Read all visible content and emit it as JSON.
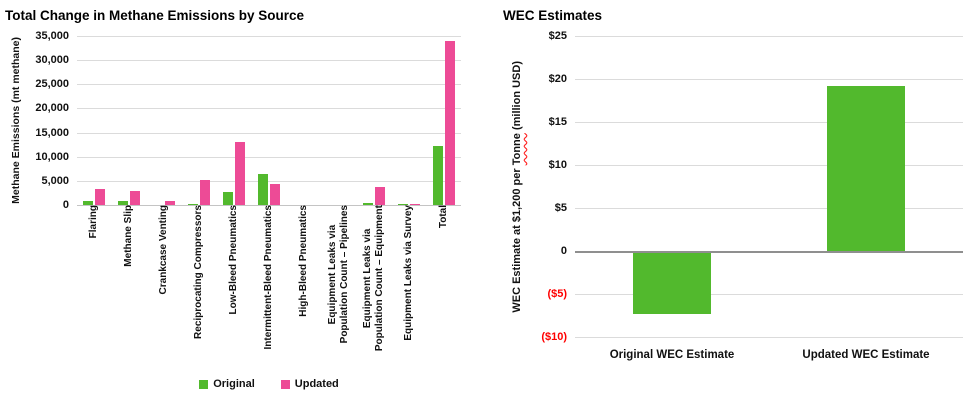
{
  "page": {
    "background": "#FFFFFF"
  },
  "colors": {
    "original_green": "#52B92D",
    "updated_pink": "#ED4B96",
    "wec_bar_green": "#52B92D",
    "negative_tick_red": "#FF0000",
    "gridline": "#DBDBDB",
    "zero_line": "#8F8F8F",
    "axis_baseline": "#C4C4C4"
  },
  "methane_chart": {
    "title": "Total Change in Methane Emissions by Source",
    "ylabel": "Methane Emissions (mt methane)"
  },
  "wec_chart": {
    "title": "WEC Estimates",
    "ylabel_before": "WEC Estimate at $1,200 per ",
    "ylabel_word": "Tonne",
    "ylabel_after": " (million USD)"
  },
  "chart_data": [
    {
      "type": "bar",
      "title": "Total Change in Methane Emissions by Source",
      "ylabel": "Methane Emissions (mt methane)",
      "ylim": [
        0,
        35000
      ],
      "grid": true,
      "legend_position": "bottom",
      "categories": [
        "Flaring",
        "Methane Slip",
        "Crankcase Venting",
        "Reciprocating Compressors",
        "Low-Bleed Pneumatics",
        "Intermittent-Bleed Pneumatics",
        "High-Bleed Pneumatics",
        "Equipment Leaks via\nPopulation Count – Pipelines",
        "Equipment Leaks via\nPopulation Count – Equipment",
        "Equipment Leaks via Survey",
        "Total"
      ],
      "series": [
        {
          "name": "Original",
          "color": "#52B92D",
          "values": [
            800,
            800,
            0,
            300,
            2700,
            6500,
            0,
            0,
            500,
            200,
            12200
          ]
        },
        {
          "name": "Updated",
          "color": "#ED4B96",
          "values": [
            3400,
            2800,
            900,
            5200,
            13000,
            4300,
            0,
            0,
            3700,
            300,
            34000
          ]
        }
      ],
      "yticks": [
        {
          "label": "35,000",
          "value": 35000
        },
        {
          "label": "30,000",
          "value": 30000
        },
        {
          "label": "25,000",
          "value": 25000
        },
        {
          "label": "20,000",
          "value": 20000
        },
        {
          "label": "15,000",
          "value": 15000
        },
        {
          "label": "10,000",
          "value": 10000
        },
        {
          "label": "5,000",
          "value": 5000
        },
        {
          "label": "0",
          "value": 0
        }
      ]
    },
    {
      "type": "bar",
      "title": "WEC Estimates",
      "ylabel": "WEC Estimate at $1,200 per Tonne (million USD)",
      "ylim": [
        -10,
        25
      ],
      "grid": true,
      "bar_color": "#52B92D",
      "categories": [
        "Original WEC Estimate",
        "Updated WEC Estimate"
      ],
      "values": [
        -7.3,
        19.2
      ],
      "yticks": [
        {
          "label": "$25",
          "value": 25
        },
        {
          "label": "$20",
          "value": 20
        },
        {
          "label": "$15",
          "value": 15
        },
        {
          "label": "$10",
          "value": 10
        },
        {
          "label": "$5",
          "value": 5
        },
        {
          "label": "0",
          "value": 0
        },
        {
          "label": "($5)",
          "value": -5,
          "negative": true
        },
        {
          "label": "($10)",
          "value": -10,
          "negative": true
        }
      ]
    }
  ]
}
